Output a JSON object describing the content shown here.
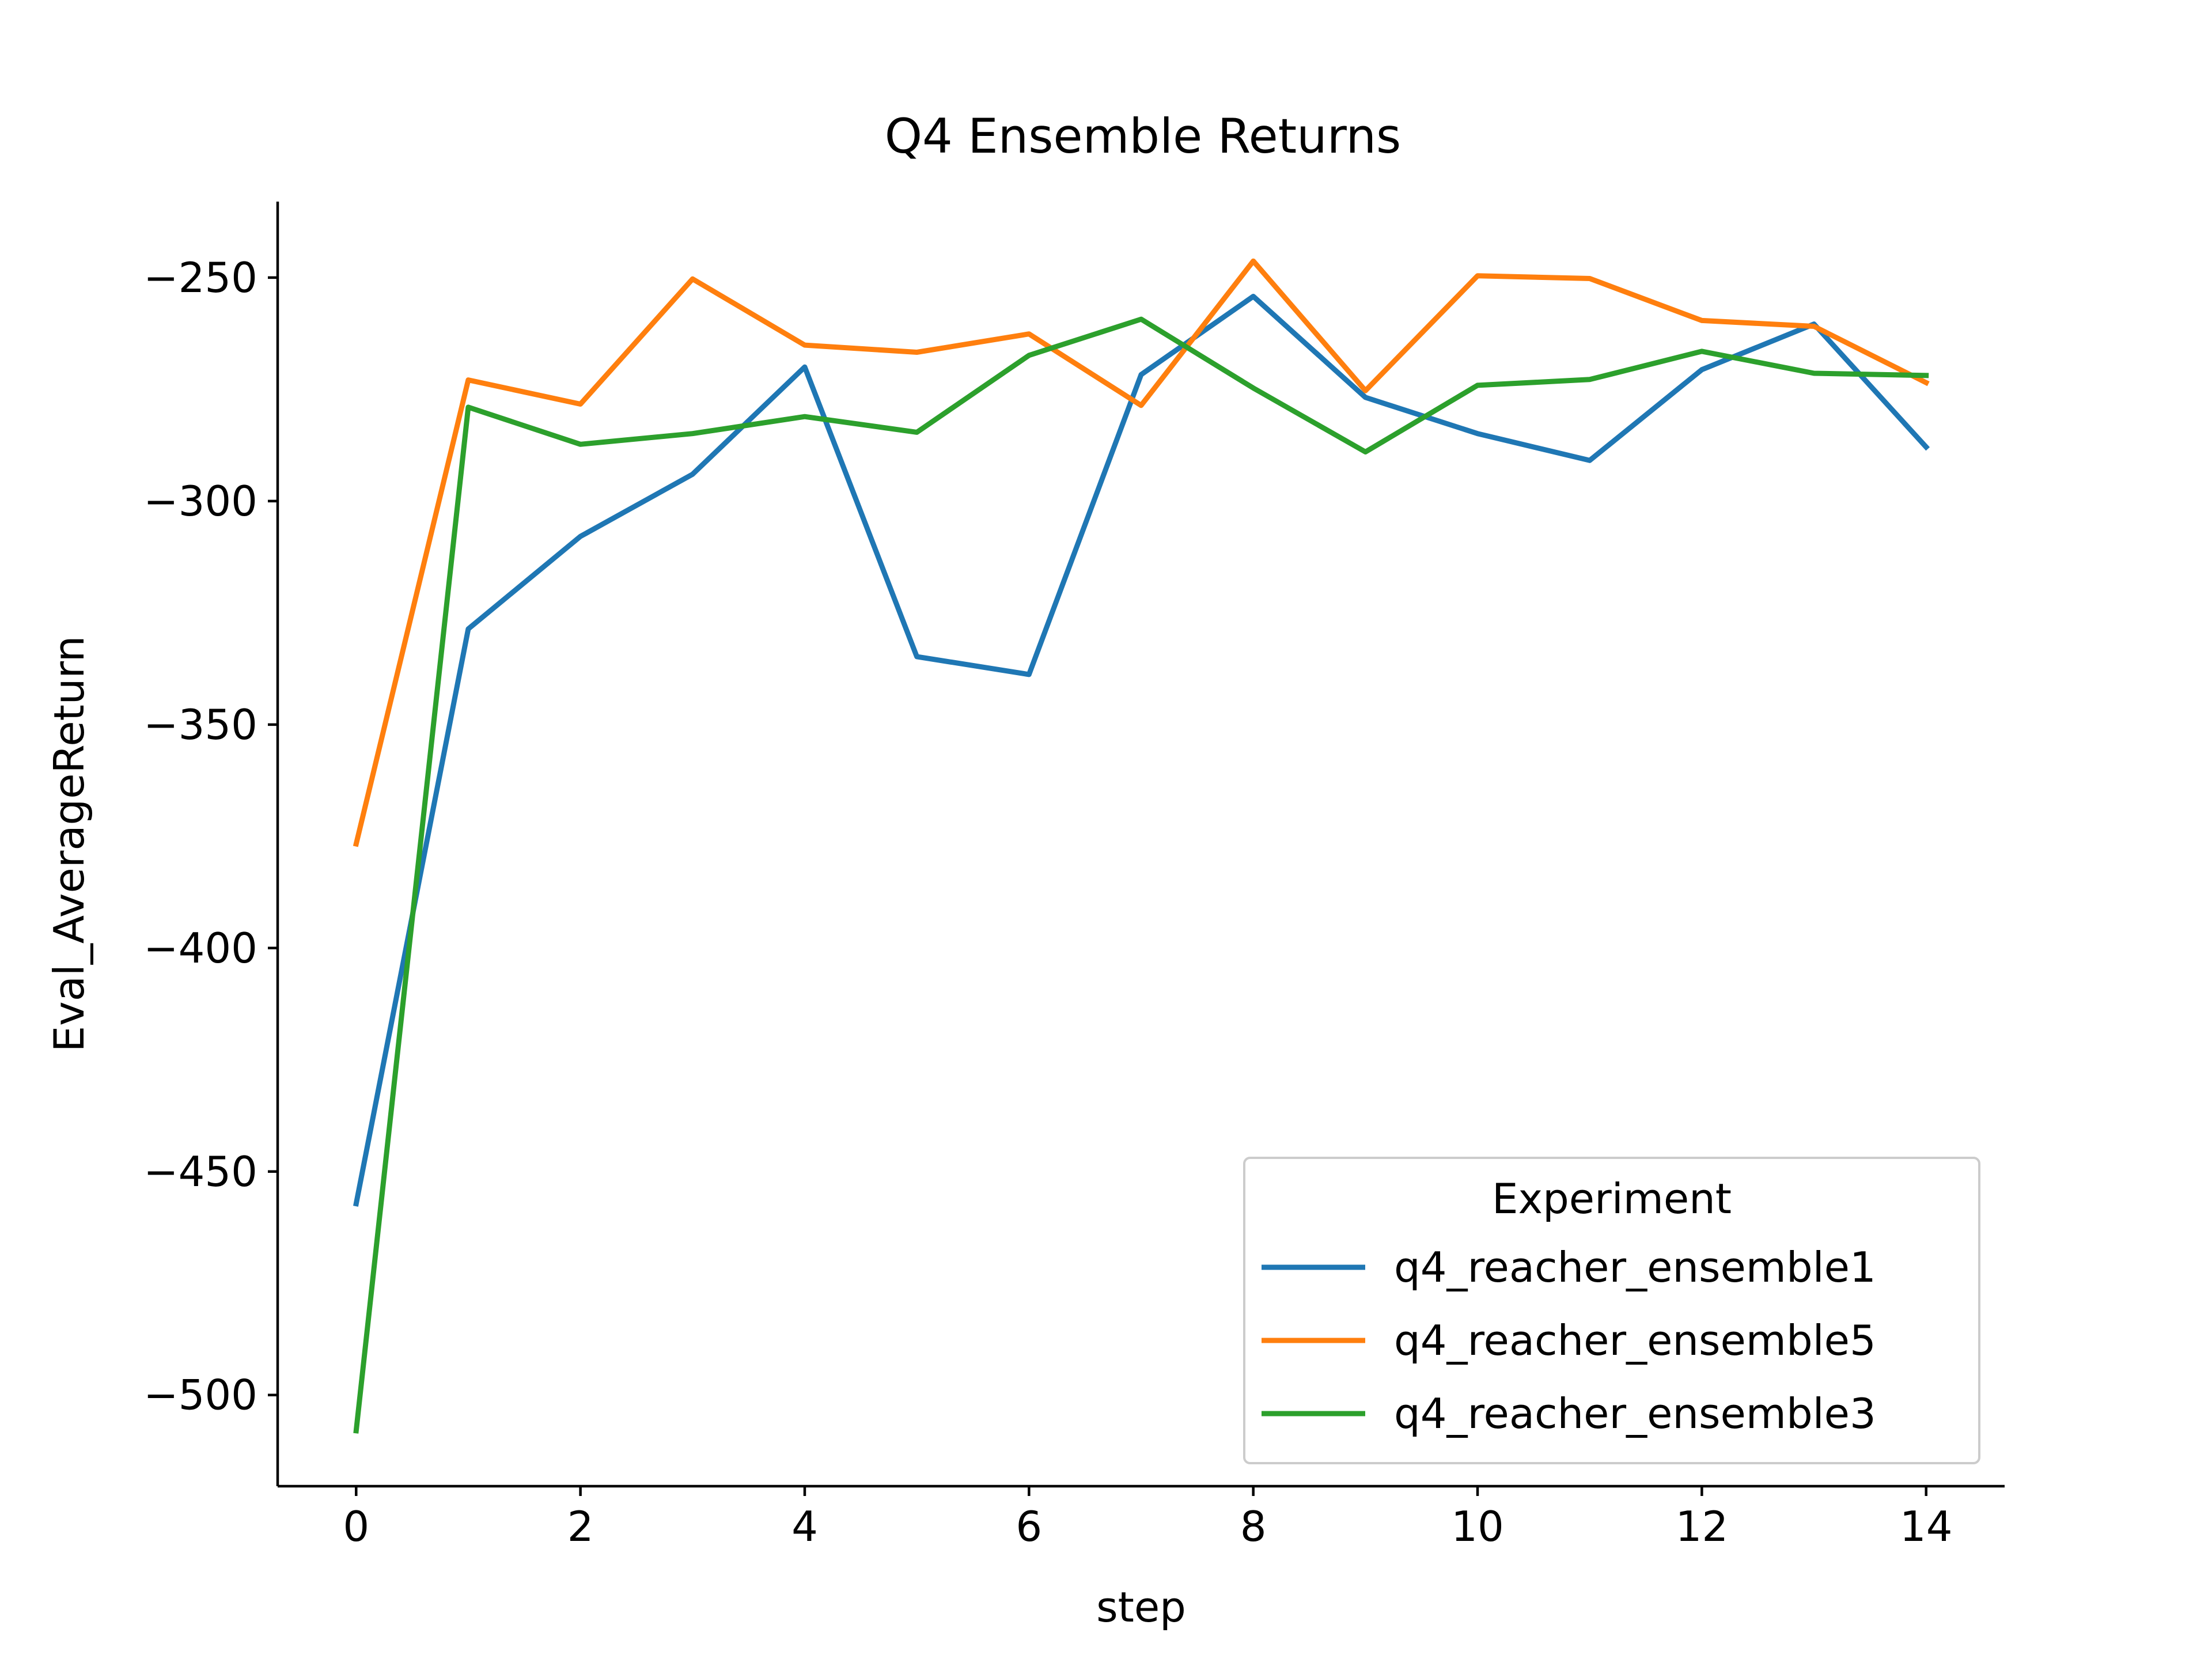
{
  "chart_data": {
    "type": "line",
    "title": "Q4 Ensemble Returns",
    "xlabel": "step",
    "ylabel": "Eval_AverageReturn",
    "xlim": [
      -0.7,
      14.7
    ],
    "ylim": [
      -520.4,
      -233.0
    ],
    "xticks": [
      0,
      2,
      4,
      6,
      8,
      10,
      12,
      14
    ],
    "yticks": [
      -250,
      -300,
      -350,
      -400,
      -450,
      -500
    ],
    "x": [
      0,
      1,
      2,
      3,
      4,
      5,
      6,
      7,
      8,
      9,
      10,
      11,
      12,
      13,
      14
    ],
    "grid": false,
    "legend": {
      "title": "Experiment",
      "position": "bottom-right"
    },
    "series": [
      {
        "name": "q4_reacher_ensemble1",
        "color": "#1f77b4",
        "values": [
          -457.2,
          -328.6,
          -307.9,
          -294.0,
          -270.0,
          -334.8,
          -338.8,
          -271.7,
          -254.2,
          -276.8,
          -284.9,
          -290.9,
          -270.6,
          -260.4,
          -287.9
        ]
      },
      {
        "name": "q4_reacher_ensemble5",
        "color": "#ff7f0e",
        "values": [
          -376.7,
          -272.9,
          -278.3,
          -250.3,
          -265.1,
          -266.7,
          -262.6,
          -278.6,
          -246.3,
          -275.3,
          -249.6,
          -250.2,
          -259.6,
          -260.9,
          -273.5
        ]
      },
      {
        "name": "q4_reacher_ensemble3",
        "color": "#2ca02c",
        "values": [
          -508.0,
          -279.0,
          -287.3,
          -284.9,
          -281.1,
          -284.6,
          -267.4,
          -259.3,
          -274.7,
          -289.0,
          -274.1,
          -272.8,
          -266.5,
          -271.4,
          -271.9
        ]
      }
    ]
  }
}
